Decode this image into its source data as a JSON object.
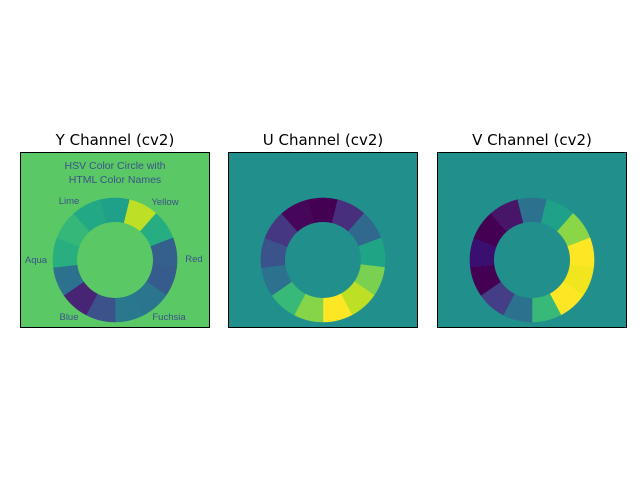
{
  "panels": [
    {
      "id": "y",
      "title": "Y Channel (cv2)",
      "background": "#5ac864",
      "center_color": "#5ac864",
      "segments": [
        "#1fa088",
        "#bddf26",
        "#26ad81",
        "#355f8d",
        "#365c8d",
        "#2b758e",
        "#2a788e",
        "#3b528b",
        "#482475",
        "#2c728e",
        "#29af7f",
        "#35b779",
        "#22a884"
      ],
      "caption": [
        "HSV Color Circle with",
        "HTML Color Names"
      ],
      "labels": {
        "lime": "Lime",
        "yellow": "Yellow",
        "aqua": "Aqua",
        "red": "Red",
        "blue": "Blue",
        "fuchsia": "Fuchsia"
      },
      "label_color": "#3b528b"
    },
    {
      "id": "u",
      "title": "U Channel (cv2)",
      "background": "#21908d",
      "center_color": "#21908d",
      "segments": [
        "#440154",
        "#472f7d",
        "#31688e",
        "#20a486",
        "#7ad151",
        "#bddf26",
        "#fde725",
        "#86d549",
        "#38b977",
        "#2c728e",
        "#3b528b",
        "#453781",
        "#46075a"
      ],
      "caption": [],
      "labels": {},
      "label_color": ""
    },
    {
      "id": "v",
      "title": "V Channel (cv2)",
      "background": "#21908d",
      "center_color": "#21908d",
      "segments": [
        "#2c728e",
        "#1fa088",
        "#8bd646",
        "#fde725",
        "#f1e51d",
        "#fde725",
        "#38b977",
        "#2c728e",
        "#433e85",
        "#440154",
        "#3b0f70",
        "#440154",
        "#481668"
      ],
      "caption": [],
      "labels": {},
      "label_color": ""
    }
  ]
}
